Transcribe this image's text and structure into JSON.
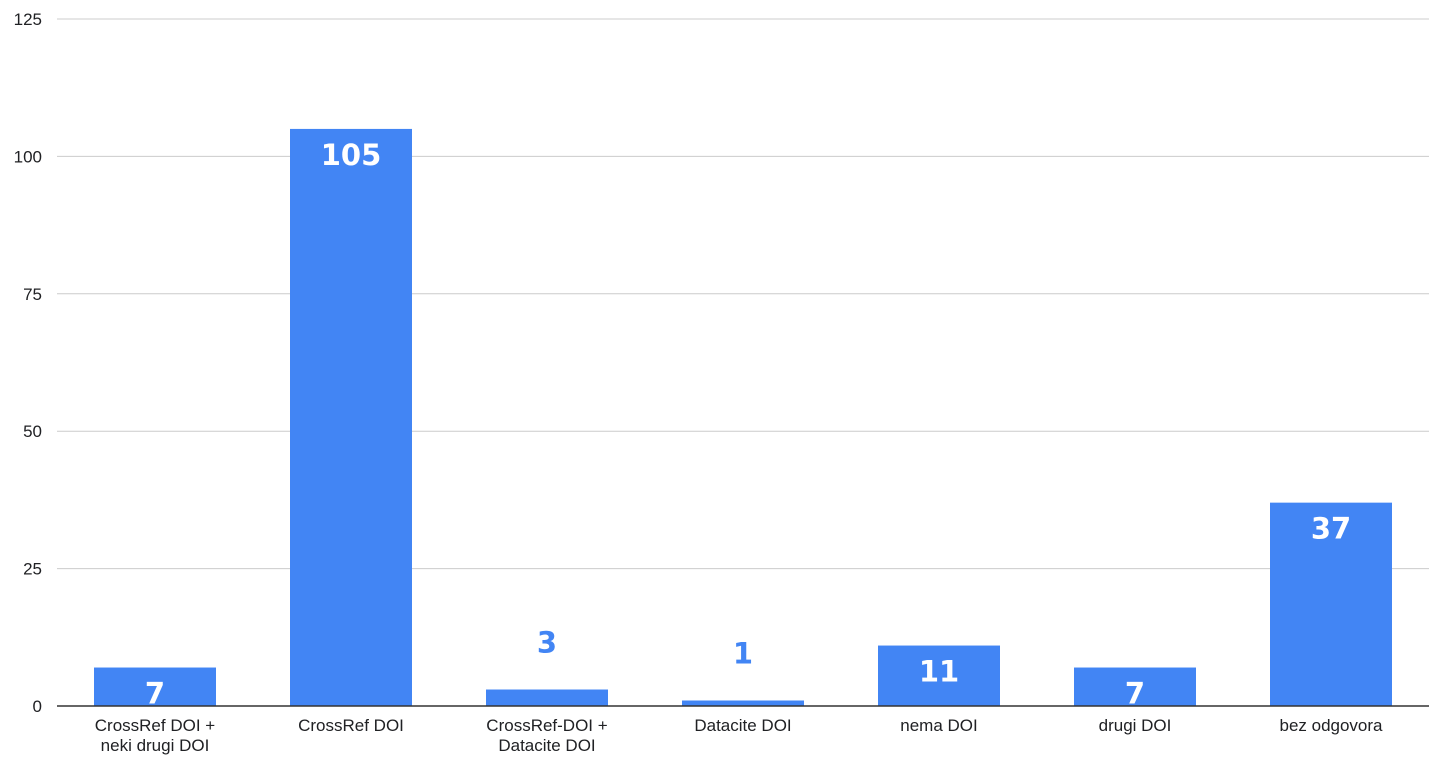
{
  "chart_data": {
    "type": "bar",
    "title": "",
    "xlabel": "",
    "ylabel": "",
    "categories": [
      [
        "CrossRef DOI +",
        "neki drugi DOI"
      ],
      [
        "CrossRef DOI"
      ],
      [
        "CrossRef-DOI +",
        "Datacite DOI"
      ],
      [
        "Datacite DOI"
      ],
      [
        "nema DOI"
      ],
      [
        "drugi DOI"
      ],
      [
        "bez odgovora"
      ]
    ],
    "values": [
      7,
      105,
      3,
      1,
      11,
      7,
      37
    ],
    "ylim": [
      0,
      125
    ],
    "yticks": [
      0,
      25,
      50,
      75,
      100,
      125
    ],
    "grid": true,
    "legend": "none",
    "colors": {
      "bar": "#4285f4",
      "label_inside": "#ffffff",
      "label_outside": "#4285f4",
      "grid": "#cccccc",
      "axis": "#333333"
    }
  }
}
